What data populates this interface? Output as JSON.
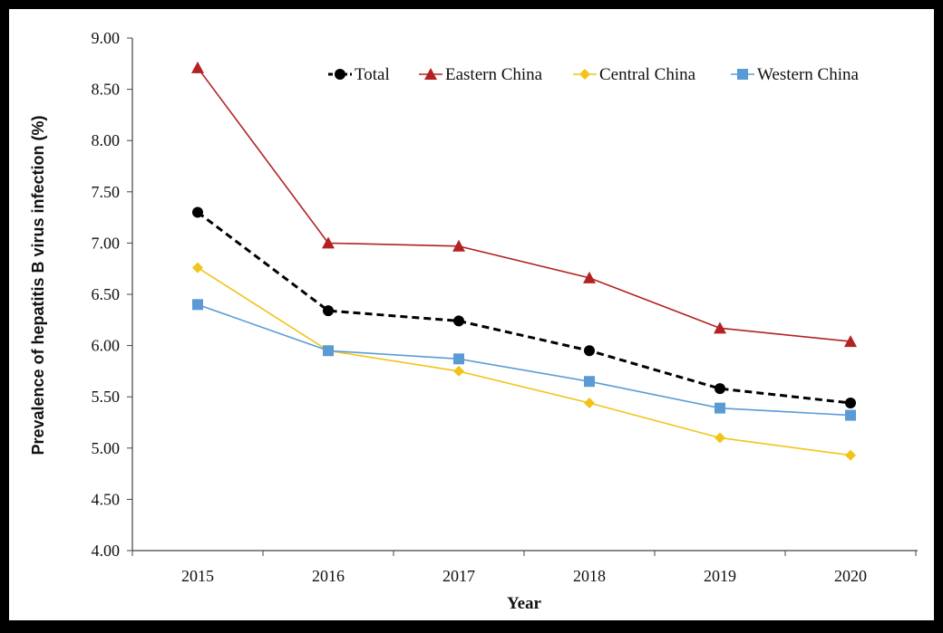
{
  "chart_data": {
    "type": "line",
    "title": "",
    "xlabel": "Year",
    "ylabel": "Prevalence of hepatitis B virus infection (%)",
    "x": [
      "2015",
      "2016",
      "2017",
      "2018",
      "2019",
      "2020"
    ],
    "ylim": [
      4.0,
      9.0
    ],
    "yticks": [
      "4.00",
      "4.50",
      "5.00",
      "5.50",
      "6.00",
      "6.50",
      "7.00",
      "7.50",
      "8.00",
      "8.50",
      "9.00"
    ],
    "grid": false,
    "legend_position": "top-right",
    "series": [
      {
        "name": "Total",
        "values": [
          7.3,
          6.34,
          6.24,
          5.95,
          5.58,
          5.44
        ],
        "color": "#000000",
        "marker": "circle",
        "dash": true
      },
      {
        "name": "Eastern China",
        "values": [
          8.71,
          7.0,
          6.97,
          6.66,
          6.17,
          6.04
        ],
        "color": "#b22222",
        "marker": "triangle",
        "dash": false
      },
      {
        "name": "Central China",
        "values": [
          6.76,
          5.95,
          5.75,
          5.44,
          5.1,
          4.93
        ],
        "color": "#f2c41a",
        "marker": "diamond",
        "dash": false
      },
      {
        "name": "Western China",
        "values": [
          6.4,
          5.95,
          5.87,
          5.65,
          5.39,
          5.32
        ],
        "color": "#5b9bd5",
        "marker": "square",
        "dash": false
      }
    ]
  }
}
